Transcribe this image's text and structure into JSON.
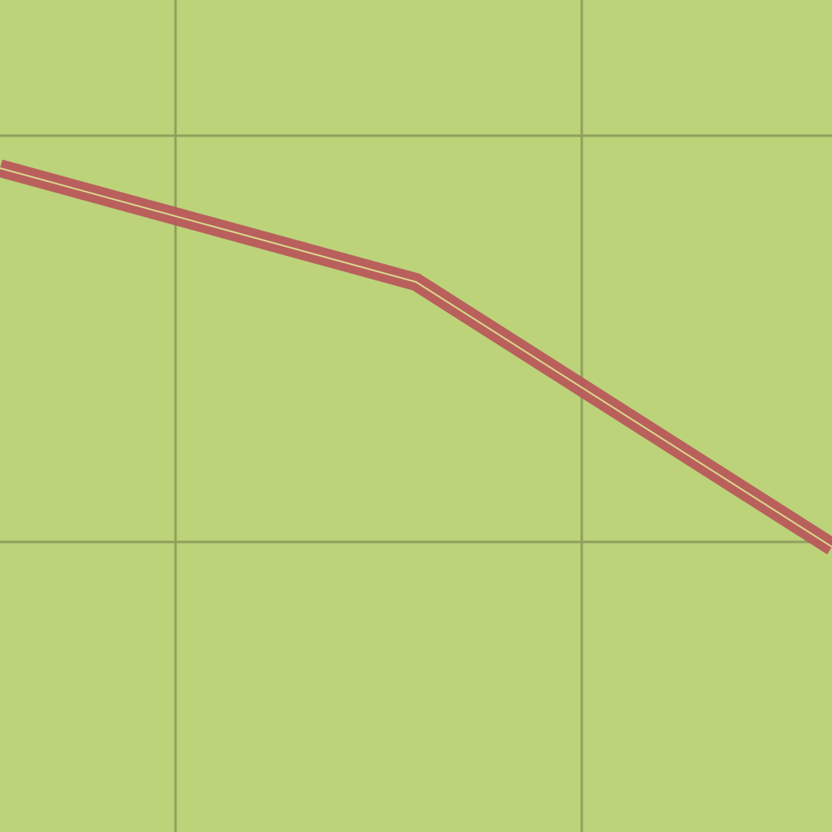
{
  "map": {
    "type": "map-tile",
    "colors": {
      "land": "#bcd37a",
      "grid": "#8fa05c",
      "route_casing": "#b85a5c",
      "route_center": "#d9d88a"
    },
    "layers": {
      "grid": "grid-lines",
      "route": "road"
    }
  }
}
